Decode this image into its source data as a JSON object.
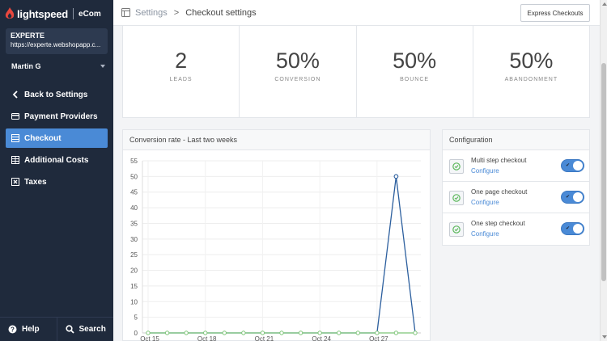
{
  "brand": {
    "name": "lightspeed",
    "product": "eCom",
    "accent": "#e8473e"
  },
  "store": {
    "name": "EXPERTE",
    "url": "https://experte.webshopapp.c..."
  },
  "user": {
    "name": "Martin G"
  },
  "nav": {
    "items": [
      {
        "label": "Back to Settings",
        "icon": "chevron-left-icon"
      },
      {
        "label": "Payment Providers",
        "icon": "credit-card-icon"
      },
      {
        "label": "Checkout",
        "icon": "cart-icon",
        "active": true
      },
      {
        "label": "Additional Costs",
        "icon": "table-icon"
      },
      {
        "label": "Taxes",
        "icon": "x-box-icon"
      }
    ]
  },
  "footer": {
    "help": "Help",
    "search": "Search"
  },
  "header": {
    "crumb_root": "Settings",
    "crumb_sep": ">",
    "crumb_current": "Checkout settings",
    "action": "Express Checkouts"
  },
  "stats": [
    {
      "value": "2",
      "label": "LEADS"
    },
    {
      "value": "50%",
      "label": "CONVERSION"
    },
    {
      "value": "50%",
      "label": "BOUNCE"
    },
    {
      "value": "50%",
      "label": "ABANDONMENT"
    }
  ],
  "chart_panel": {
    "title": "Conversion rate - Last two weeks"
  },
  "config": {
    "title": "Configuration",
    "items": [
      {
        "title": "Multi step checkout",
        "link": "Configure",
        "enabled": true
      },
      {
        "title": "One page checkout",
        "link": "Configure",
        "enabled": true
      },
      {
        "title": "One step checkout",
        "link": "Configure",
        "enabled": true
      }
    ]
  },
  "colors": {
    "sidebar": "#1f2a3c",
    "active": "#4a8ad6",
    "line": "#2c5f9e",
    "points": "#7cc576"
  },
  "chart_data": {
    "type": "line",
    "title": "Conversion rate - Last two weeks",
    "xlabel": "",
    "ylabel": "",
    "ylim": [
      0,
      55
    ],
    "yticks": [
      0,
      5,
      10,
      15,
      20,
      25,
      30,
      35,
      40,
      45,
      50,
      55
    ],
    "x_tick_labels": [
      "Oct 15",
      "Oct 18",
      "Oct 21",
      "Oct 24",
      "Oct 27"
    ],
    "grid": true,
    "series": [
      {
        "values": [
          0,
          0,
          0,
          0,
          0,
          0,
          0,
          0,
          0,
          0,
          0,
          0,
          0,
          50,
          0
        ]
      },
      {
        "values": [
          0,
          0,
          0,
          0,
          0,
          0,
          0,
          0,
          0,
          0,
          0,
          0,
          0,
          0,
          0
        ]
      }
    ]
  }
}
